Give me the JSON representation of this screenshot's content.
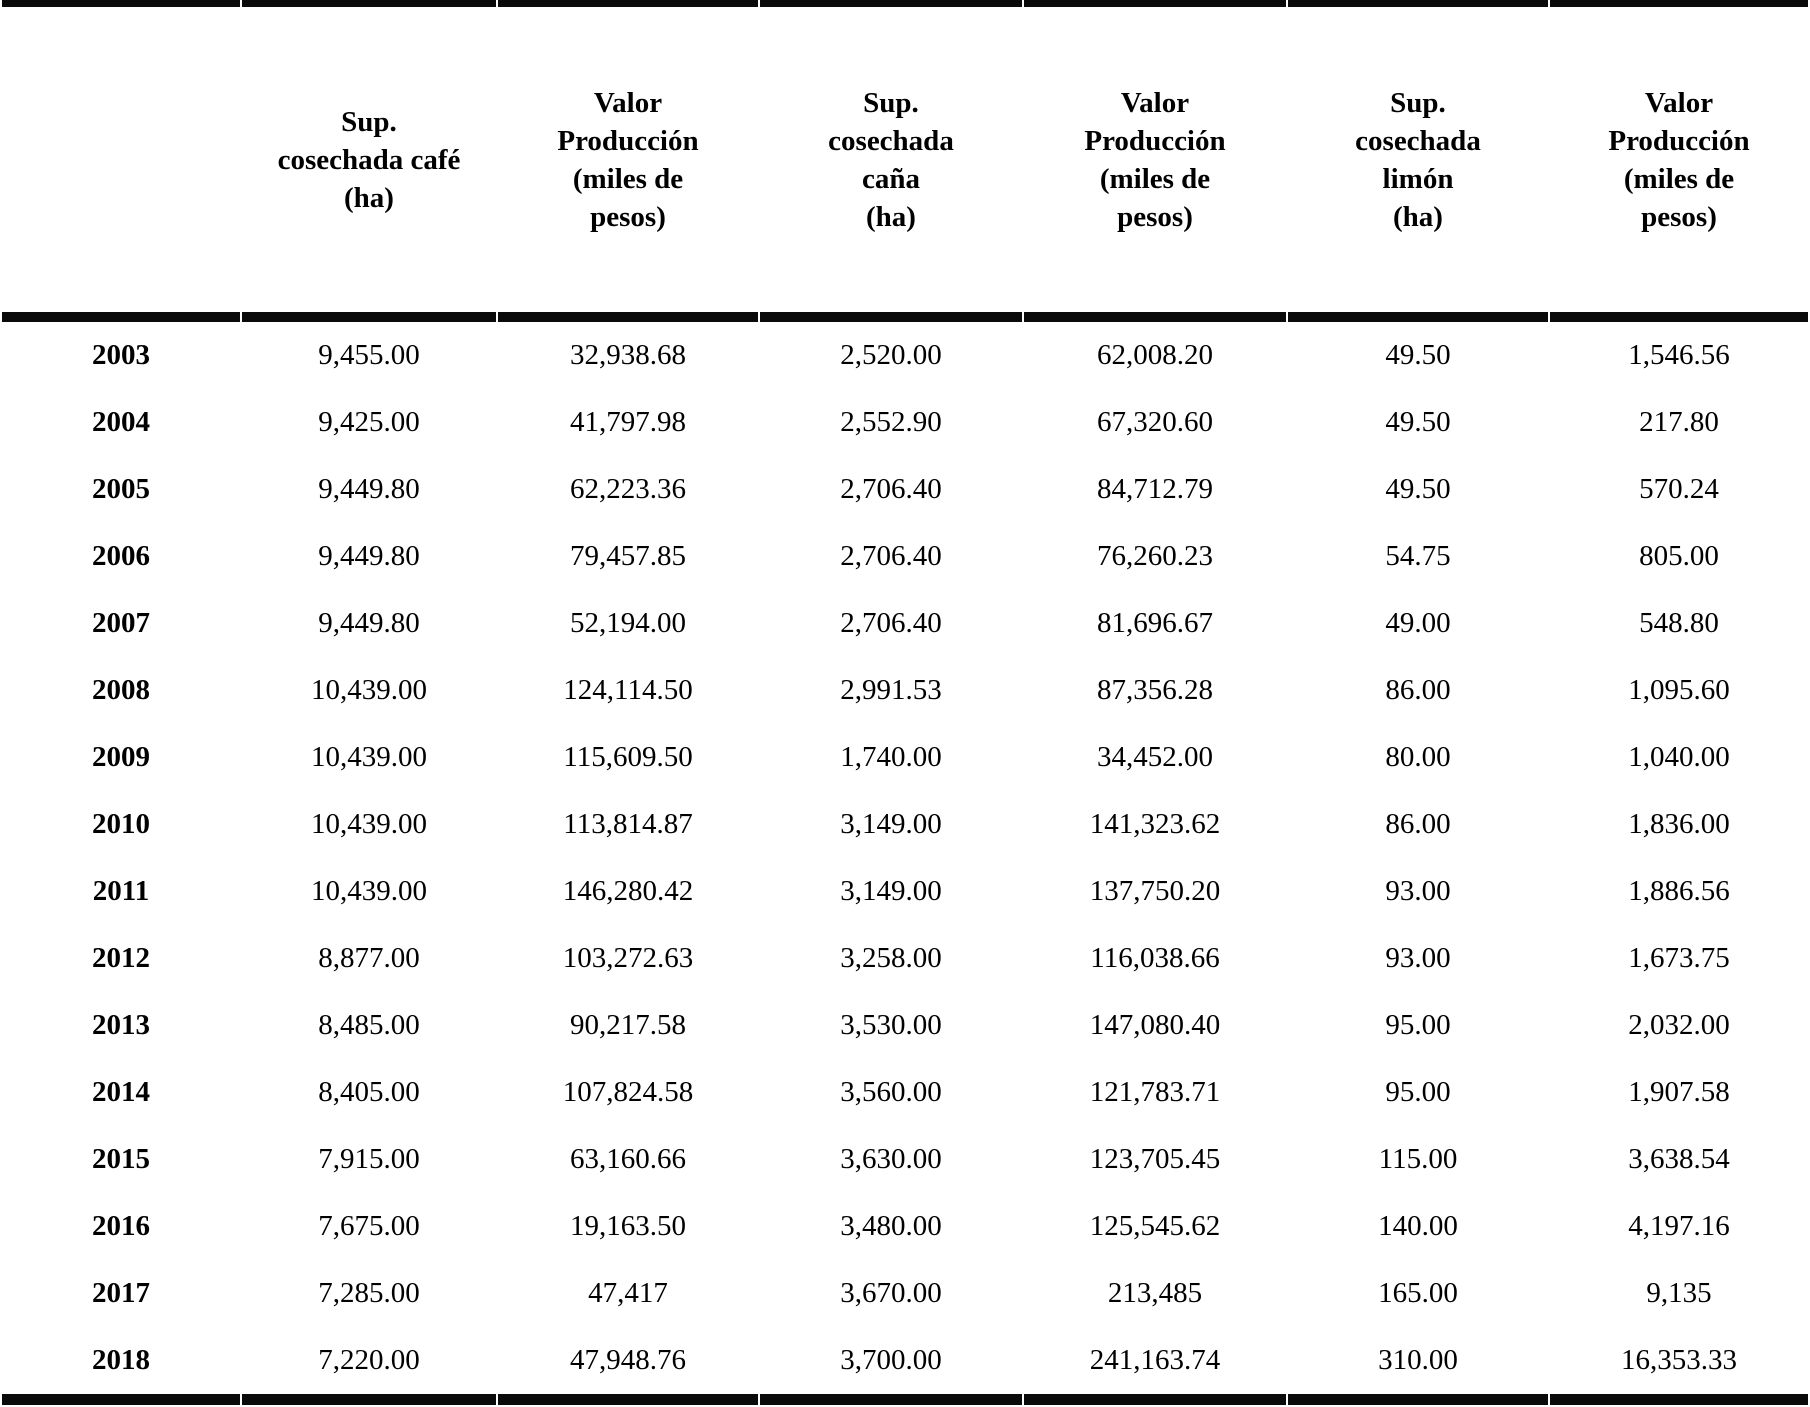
{
  "table": {
    "title_semantic": "Superficie cosechada y valor de producción de café, caña y limón por año",
    "year_column_header": "",
    "columns": [
      {
        "header": "Sup.\ncosechada café\n(ha)"
      },
      {
        "header": "Valor\nProducción\n(miles de\npesos)"
      },
      {
        "header": "Sup.\ncosechada\ncaña\n(ha)"
      },
      {
        "header": "Valor\nProducción\n(miles de\npesos)"
      },
      {
        "header": "Sup.\ncosechada\nlimón\n(ha)"
      },
      {
        "header": "Valor\nProducción\n(miles de\npesos)"
      }
    ],
    "rows": [
      {
        "year": "2003",
        "values": [
          "9,455.00",
          "32,938.68",
          "2,520.00",
          "62,008.20",
          "49.50",
          "1,546.56"
        ]
      },
      {
        "year": "2004",
        "values": [
          "9,425.00",
          "41,797.98",
          "2,552.90",
          "67,320.60",
          "49.50",
          "217.80"
        ]
      },
      {
        "year": "2005",
        "values": [
          "9,449.80",
          "62,223.36",
          "2,706.40",
          "84,712.79",
          "49.50",
          "570.24"
        ]
      },
      {
        "year": "2006",
        "values": [
          "9,449.80",
          "79,457.85",
          "2,706.40",
          "76,260.23",
          "54.75",
          "805.00"
        ]
      },
      {
        "year": "2007",
        "values": [
          "9,449.80",
          "52,194.00",
          "2,706.40",
          "81,696.67",
          "49.00",
          "548.80"
        ]
      },
      {
        "year": "2008",
        "values": [
          "10,439.00",
          "124,114.50",
          "2,991.53",
          "87,356.28",
          "86.00",
          "1,095.60"
        ]
      },
      {
        "year": "2009",
        "values": [
          "10,439.00",
          "115,609.50",
          "1,740.00",
          "34,452.00",
          "80.00",
          "1,040.00"
        ]
      },
      {
        "year": "2010",
        "values": [
          "10,439.00",
          "113,814.87",
          "3,149.00",
          "141,323.62",
          "86.00",
          "1,836.00"
        ]
      },
      {
        "year": "2011",
        "values": [
          "10,439.00",
          "146,280.42",
          "3,149.00",
          "137,750.20",
          "93.00",
          "1,886.56"
        ]
      },
      {
        "year": "2012",
        "values": [
          "8,877.00",
          "103,272.63",
          "3,258.00",
          "116,038.66",
          "93.00",
          "1,673.75"
        ]
      },
      {
        "year": "2013",
        "values": [
          "8,485.00",
          "90,217.58",
          "3,530.00",
          "147,080.40",
          "95.00",
          "2,032.00"
        ]
      },
      {
        "year": "2014",
        "values": [
          "8,405.00",
          "107,824.58",
          "3,560.00",
          "121,783.71",
          "95.00",
          "1,907.58"
        ]
      },
      {
        "year": "2015",
        "values": [
          "7,915.00",
          "63,160.66",
          "3,630.00",
          "123,705.45",
          "115.00",
          "3,638.54"
        ]
      },
      {
        "year": "2016",
        "values": [
          "7,675.00",
          "19,163.50",
          "3,480.00",
          "125,545.62",
          "140.00",
          "4,197.16"
        ]
      },
      {
        "year": "2017",
        "values": [
          "7,285.00",
          "47,417",
          "3,670.00",
          "213,485",
          "165.00",
          "9,135"
        ]
      },
      {
        "year": "2018",
        "values": [
          "7,220.00",
          "47,948.76",
          "3,700.00",
          "241,163.74",
          "310.00",
          "16,353.33"
        ]
      }
    ]
  },
  "colors": {
    "text": "#000000",
    "rule": "#0a0a0a",
    "background": "#ffffff"
  }
}
